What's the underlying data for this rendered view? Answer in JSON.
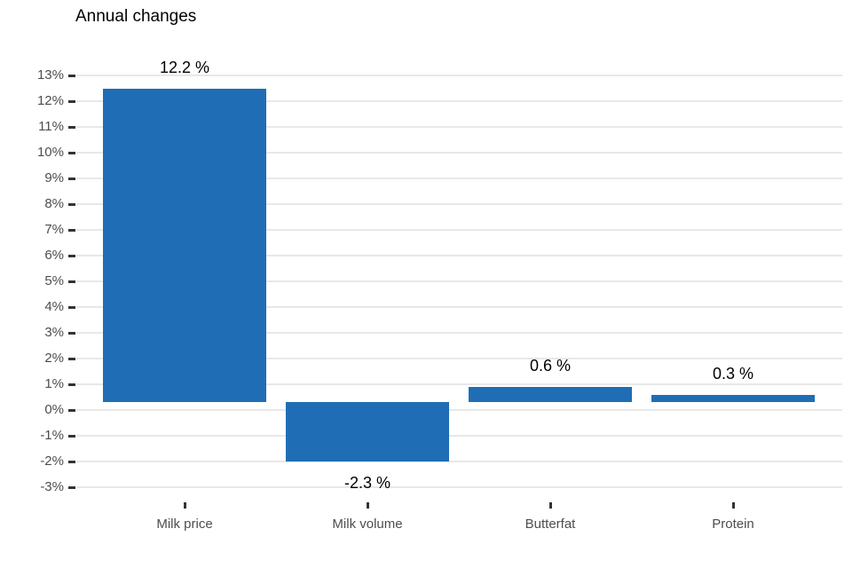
{
  "title": "Annual changes",
  "colors": {
    "bar": "#1f6eb5",
    "gridline": "#e8e8e8",
    "axis_text": "#4d4d4d",
    "tick_mark": "#333333",
    "value_label_text": "#000000",
    "title_text": "#000000",
    "background": "#ffffff"
  },
  "chart_data": {
    "type": "bar",
    "title": "Annual changes",
    "categories": [
      "Milk price",
      "Milk volume",
      "Butterfat",
      "Protein"
    ],
    "values": [
      12.2,
      -2.3,
      0.6,
      0.3
    ],
    "value_labels": [
      "12.2 %",
      "-2.3 %",
      "0.6 %",
      "0.3 %"
    ],
    "xlabel": "",
    "ylabel": "",
    "ylim": [
      -3,
      13
    ],
    "ytick_step": 1,
    "ytick_labels": [
      "13%",
      "12%",
      "11%",
      "10%",
      "9%",
      "8%",
      "7%",
      "6%",
      "5%",
      "4%",
      "3%",
      "2%",
      "1%",
      "0%",
      "-1%",
      "-2%",
      "-3%"
    ],
    "grid": "horizontal-only",
    "legend": "none",
    "bar_color": "#1f6eb5",
    "bar_baseline_offset_pct": 0.3
  }
}
